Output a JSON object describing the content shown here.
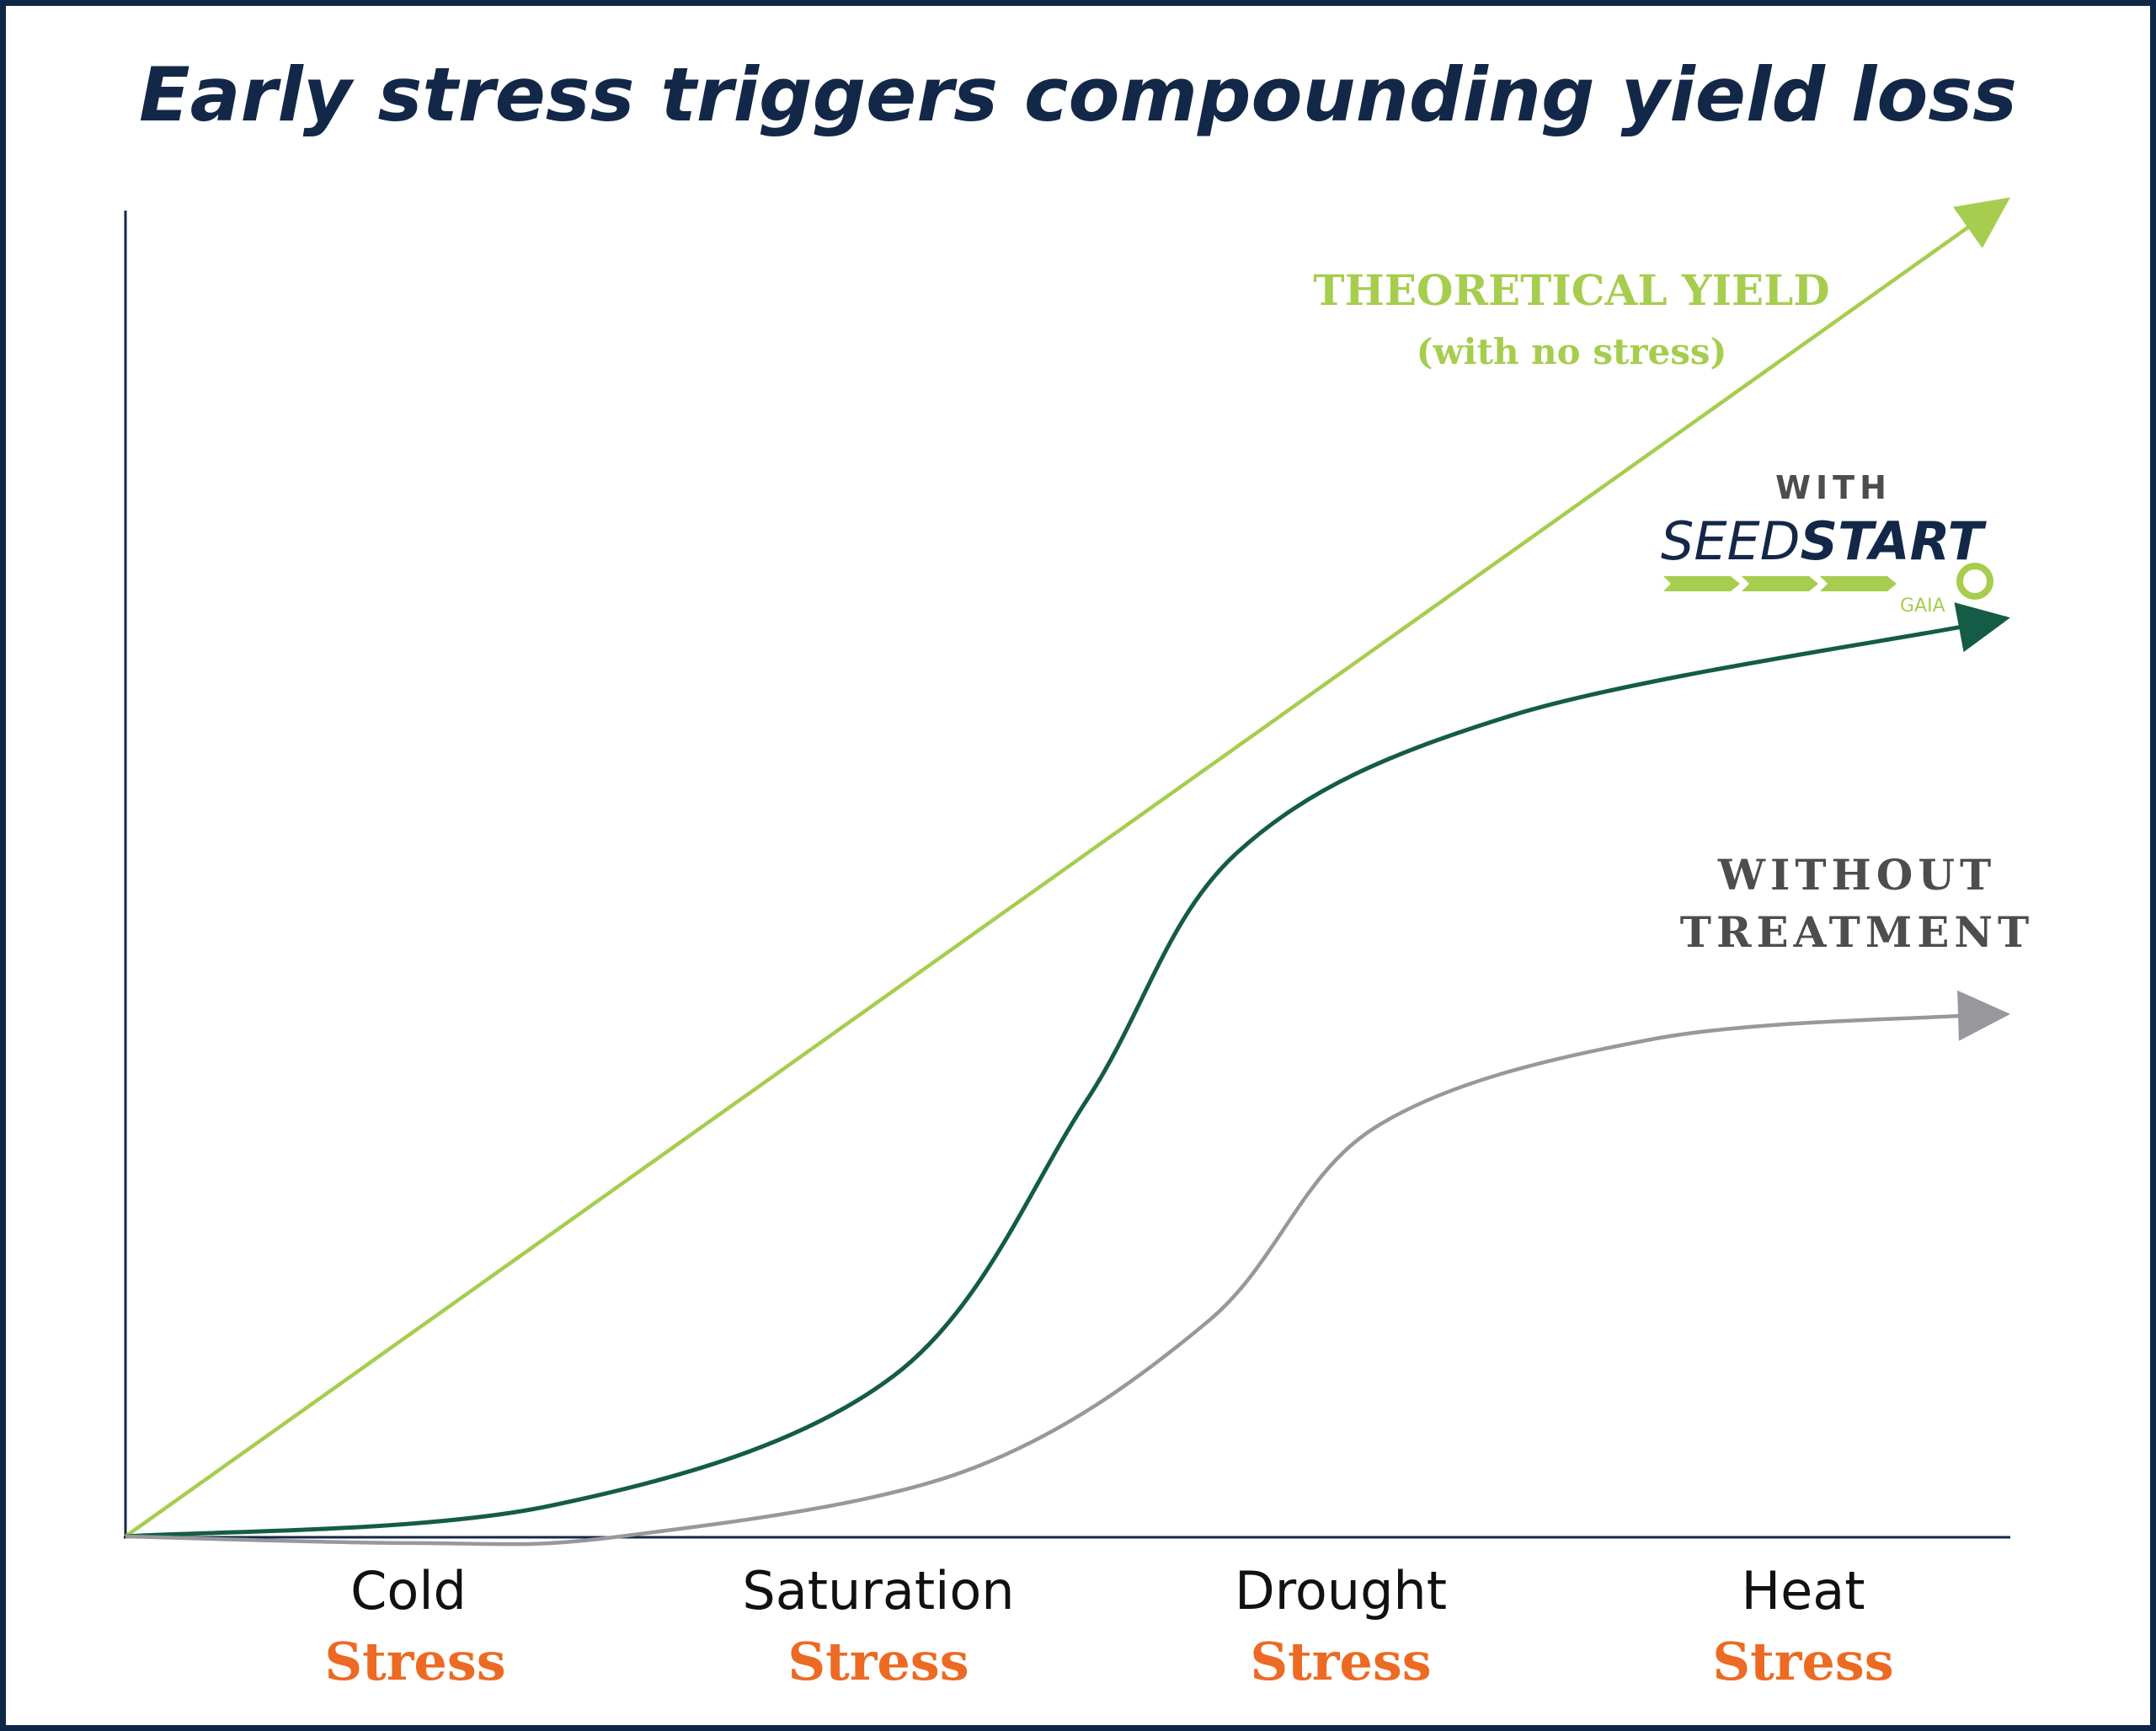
{
  "chart_data": {
    "type": "line",
    "title": "Early stress triggers compounding yield loss",
    "xlabel": "",
    "ylabel": "",
    "xlim": [
      0,
      4
    ],
    "ylim": [
      0,
      100
    ],
    "grid": false,
    "categories": [
      {
        "name": "Cold",
        "sub": "Stress"
      },
      {
        "name": "Saturation",
        "sub": "Stress"
      },
      {
        "name": "Drought",
        "sub": "Stress"
      },
      {
        "name": "Heat",
        "sub": "Stress"
      }
    ],
    "series": [
      {
        "name": "Theoretical yield",
        "label_line1": "THEORETICAL YIELD",
        "label_line2": "(with no stress)",
        "color": "#a6cd4e",
        "points": [
          [
            0,
            0
          ],
          [
            4,
            101
          ]
        ]
      },
      {
        "name": "With SeedStart",
        "label_line1": "WITH",
        "logo": {
          "word1": "SEED",
          "word2": "START",
          "sub": "GAIA"
        },
        "color": "#145c45",
        "points": [
          [
            0,
            0
          ],
          [
            0.9,
            2.3
          ],
          [
            1.63,
            12.1
          ],
          [
            2.04,
            32.9
          ],
          [
            2.36,
            51.6
          ],
          [
            2.94,
            61.9
          ],
          [
            3.91,
            68.7
          ],
          [
            4.0,
            69.3
          ]
        ]
      },
      {
        "name": "Without treatment",
        "label_line1": "WITHOUT",
        "label_line2": "TREATMENT",
        "color": "#98989c",
        "points": [
          [
            0,
            0
          ],
          [
            0.61,
            -0.5
          ],
          [
            1.05,
            0
          ],
          [
            1.78,
            4.9
          ],
          [
            2.3,
            16.3
          ],
          [
            2.65,
            30.8
          ],
          [
            3.24,
            37.5
          ],
          [
            3.91,
            39.3
          ],
          [
            4.0,
            39.4
          ]
        ]
      }
    ],
    "colors": {
      "axis": "#132848",
      "stress": "#ec6a23",
      "title": "#132848",
      "frame": "#0f2747"
    }
  }
}
